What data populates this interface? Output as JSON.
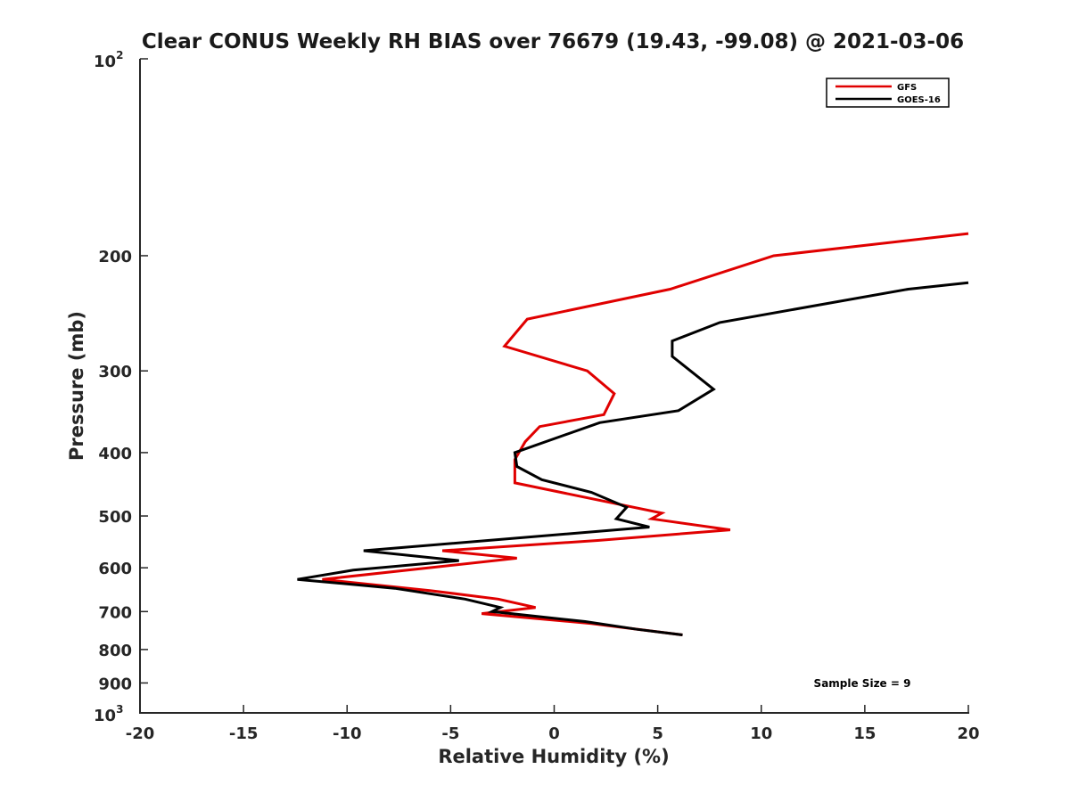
{
  "chart_data": {
    "type": "line",
    "title": "Clear CONUS Weekly RH BIAS over 76679 (19.43, -99.08) @ 2021-03-06",
    "xlabel": "Relative Humidity (%)",
    "ylabel": "Pressure (mb)",
    "xlim": [
      -20,
      20
    ],
    "ylim": [
      1000,
      100
    ],
    "y_scale": "log",
    "y_reversed": true,
    "x_ticks": [
      -20,
      -15,
      -10,
      -5,
      0,
      5,
      10,
      15,
      20
    ],
    "x_tick_labels": [
      "-20",
      "-15",
      "-10",
      "-5",
      "0",
      "5",
      "10",
      "15",
      "20"
    ],
    "y_ticks": [
      {
        "value": 100,
        "base": "10",
        "exp": "2"
      },
      {
        "value": 200,
        "text": "200"
      },
      {
        "value": 300,
        "text": "300"
      },
      {
        "value": 400,
        "text": "400"
      },
      {
        "value": 500,
        "text": "500"
      },
      {
        "value": 600,
        "text": "600"
      },
      {
        "value": 700,
        "text": "700"
      },
      {
        "value": 800,
        "text": "800"
      },
      {
        "value": 900,
        "text": "900"
      },
      {
        "value": 1000,
        "base": "10",
        "exp": "3"
      }
    ],
    "grid": false,
    "legend_position": "top-right",
    "series": [
      {
        "name": "GFS",
        "color": "#e00000",
        "points": [
          {
            "x": 20.0,
            "p": 185
          },
          {
            "x": 10.6,
            "p": 200
          },
          {
            "x": 5.6,
            "p": 225
          },
          {
            "x": -1.3,
            "p": 250
          },
          {
            "x": -2.4,
            "p": 275
          },
          {
            "x": 1.6,
            "p": 300
          },
          {
            "x": 2.9,
            "p": 325
          },
          {
            "x": 2.4,
            "p": 350
          },
          {
            "x": -0.7,
            "p": 365
          },
          {
            "x": -1.4,
            "p": 385
          },
          {
            "x": -1.9,
            "p": 410
          },
          {
            "x": -1.9,
            "p": 445
          },
          {
            "x": 5.2,
            "p": 495
          },
          {
            "x": 4.7,
            "p": 505
          },
          {
            "x": 8.5,
            "p": 525
          },
          {
            "x": 2.1,
            "p": 545
          },
          {
            "x": -5.4,
            "p": 565
          },
          {
            "x": -1.8,
            "p": 580
          },
          {
            "x": -11.2,
            "p": 625
          },
          {
            "x": -6.0,
            "p": 650
          },
          {
            "x": -2.7,
            "p": 670
          },
          {
            "x": -0.9,
            "p": 690
          },
          {
            "x": -3.5,
            "p": 705
          },
          {
            "x": 1.8,
            "p": 730
          },
          {
            "x": 6.2,
            "p": 760
          }
        ]
      },
      {
        "name": "GOES-16",
        "color": "#000000",
        "points": [
          {
            "x": 20.0,
            "p": 220
          },
          {
            "x": 17.1,
            "p": 225
          },
          {
            "x": 8.0,
            "p": 253
          },
          {
            "x": 5.7,
            "p": 270
          },
          {
            "x": 5.7,
            "p": 285
          },
          {
            "x": 7.7,
            "p": 320
          },
          {
            "x": 6.0,
            "p": 345
          },
          {
            "x": 2.2,
            "p": 360
          },
          {
            "x": -1.9,
            "p": 400
          },
          {
            "x": -1.8,
            "p": 420
          },
          {
            "x": -0.6,
            "p": 440
          },
          {
            "x": 1.8,
            "p": 460
          },
          {
            "x": 3.5,
            "p": 485
          },
          {
            "x": 3.0,
            "p": 505
          },
          {
            "x": 4.6,
            "p": 520
          },
          {
            "x": -9.2,
            "p": 565
          },
          {
            "x": -4.6,
            "p": 585
          },
          {
            "x": -9.7,
            "p": 605
          },
          {
            "x": -12.4,
            "p": 625
          },
          {
            "x": -7.7,
            "p": 645
          },
          {
            "x": -4.3,
            "p": 670
          },
          {
            "x": -2.6,
            "p": 690
          },
          {
            "x": -3.0,
            "p": 700
          },
          {
            "x": 1.5,
            "p": 725
          },
          {
            "x": 4.0,
            "p": 745
          },
          {
            "x": 6.2,
            "p": 760
          }
        ]
      }
    ],
    "annotation": "Sample Size = 9"
  }
}
